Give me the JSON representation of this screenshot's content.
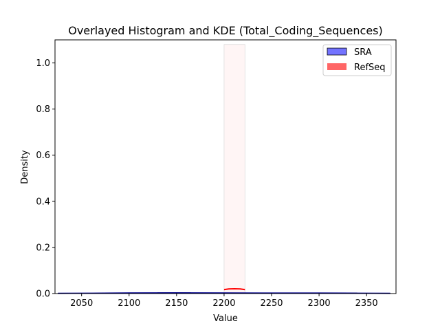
{
  "chart_data": {
    "type": "histogram",
    "title": "Overlayed Histogram and KDE (Total_Coding_Sequences)",
    "xlabel": "Value",
    "ylabel": "Density",
    "xlim": [
      2022,
      2381
    ],
    "ylim": [
      0,
      1.1
    ],
    "xticks": [
      2050,
      2100,
      2150,
      2200,
      2250,
      2300,
      2350
    ],
    "yticks": [
      0.0,
      0.2,
      0.4,
      0.6,
      0.8,
      1.0
    ],
    "grid": false,
    "legend_position": "top-right",
    "series": [
      {
        "name": "SRA",
        "color": "#0000ff",
        "kde_color": "#00008b",
        "bins": [
          {
            "x0": 2025,
            "x1": 2060,
            "density": 0.001
          },
          {
            "x0": 2060,
            "x1": 2095,
            "density": 0.002
          },
          {
            "x0": 2095,
            "x1": 2130,
            "density": 0.003
          },
          {
            "x0": 2130,
            "x1": 2165,
            "density": 0.004
          },
          {
            "x0": 2165,
            "x1": 2200,
            "density": 0.002
          },
          {
            "x0": 2200,
            "x1": 2235,
            "density": 0.002
          },
          {
            "x0": 2235,
            "x1": 2270,
            "density": 0.002
          },
          {
            "x0": 2270,
            "x1": 2305,
            "density": 0.002
          },
          {
            "x0": 2305,
            "x1": 2340,
            "density": 0.003
          },
          {
            "x0": 2340,
            "x1": 2375,
            "density": 0.001
          }
        ],
        "kde": {
          "x": [
            2025,
            2060,
            2100,
            2150,
            2200,
            2250,
            2300,
            2340,
            2375
          ],
          "y": [
            0.001,
            0.0015,
            0.0025,
            0.003,
            0.0025,
            0.0022,
            0.002,
            0.0015,
            0.0008
          ]
        }
      },
      {
        "name": "RefSeq",
        "color": "#ff0000",
        "kde_color": "#ff0000",
        "bins": [
          {
            "x0": 2200,
            "x1": 2222,
            "density": 1.08
          }
        ],
        "kde": {
          "x": [
            2200,
            2205,
            2211,
            2217,
            2222
          ],
          "y": [
            0.017,
            0.02,
            0.021,
            0.02,
            0.017
          ]
        }
      }
    ]
  }
}
